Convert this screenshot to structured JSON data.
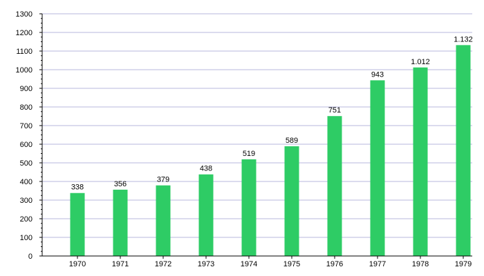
{
  "chart_data": {
    "type": "bar",
    "title": "",
    "xlabel": "",
    "ylabel": "",
    "categories": [
      "1970",
      "1971",
      "1972",
      "1973",
      "1974",
      "1975",
      "1976",
      "1977",
      "1978",
      "1979"
    ],
    "values": [
      338,
      356,
      379,
      438,
      519,
      589,
      751,
      943,
      1012,
      1132
    ],
    "value_labels": [
      "338",
      "356",
      "379",
      "438",
      "519",
      "589",
      "751",
      "943",
      "1.012",
      "1.132"
    ],
    "ylim": [
      0,
      1300
    ],
    "y_ticks": [
      0,
      100,
      200,
      300,
      400,
      500,
      600,
      700,
      800,
      900,
      1000,
      1100,
      1200,
      1300
    ],
    "y_tick_labels": [
      "0",
      "100",
      "200",
      "300",
      "400",
      "500",
      "600",
      "700",
      "800",
      "900",
      "1000",
      "1100",
      "1200",
      "1300"
    ],
    "grid": true,
    "legend": "none",
    "colors": {
      "bar": "#2ecc65",
      "grid": "#b7b7dc",
      "axis": "#000000"
    }
  }
}
